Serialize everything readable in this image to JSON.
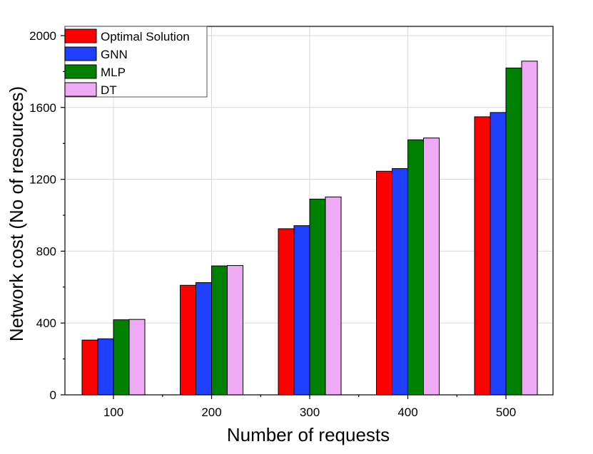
{
  "chart_data": {
    "type": "bar",
    "title": "",
    "xlabel": "Number of requests",
    "ylabel": "Network cost (No of resources)",
    "categories": [
      "100",
      "200",
      "300",
      "400",
      "500"
    ],
    "series": [
      {
        "name": "Optimal Solution",
        "color": "#ff0000",
        "values": [
          305,
          610,
          925,
          1245,
          1548
        ]
      },
      {
        "name": "GNN",
        "color": "#1f3fff",
        "values": [
          312,
          625,
          942,
          1260,
          1572
        ]
      },
      {
        "name": "MLP",
        "color": "#008000",
        "values": [
          418,
          718,
          1090,
          1420,
          1820
        ]
      },
      {
        "name": "DT",
        "color": "#eeaaf5",
        "values": [
          420,
          720,
          1102,
          1430,
          1858
        ]
      }
    ],
    "ylim": [
      0,
      2000
    ],
    "yticks": [
      "0",
      "400",
      "800",
      "1200",
      "1600",
      "2000"
    ],
    "grid": true,
    "legend_position": "top-left"
  }
}
